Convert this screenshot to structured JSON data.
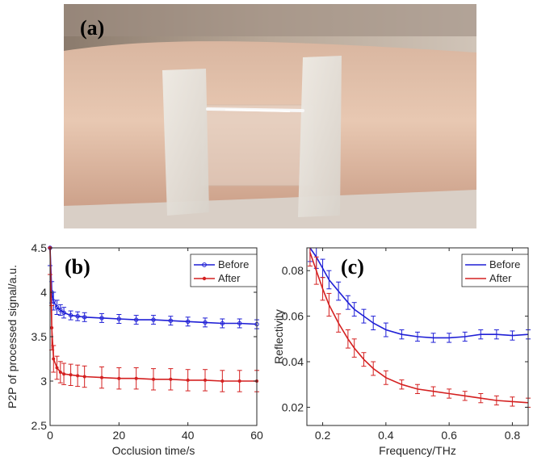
{
  "photo": {
    "label": "(a)",
    "description_icon": "forearm-with-tape-photo"
  },
  "colors": {
    "before": "#1f1fd6",
    "after": "#d42020",
    "axis": "#262626"
  },
  "chart_data": [
    {
      "type": "line",
      "panel_label": "(b)",
      "xlabel": "Occlusion time/s",
      "ylabel": "P2P of processed signal/a.u.",
      "xlim": [
        0,
        60
      ],
      "ylim": [
        2.5,
        4.5
      ],
      "xticks": [
        "0",
        "20",
        "40",
        "60"
      ],
      "yticks": [
        "2.5",
        "3",
        "3.5",
        "4",
        "4.5"
      ],
      "legend_position": "top-right",
      "series": [
        {
          "name": "Before",
          "marker": "circle",
          "x": [
            0,
            0.5,
            1,
            2,
            3,
            4,
            6,
            8,
            10,
            15,
            20,
            25,
            30,
            35,
            40,
            45,
            50,
            55,
            60
          ],
          "y": [
            4.5,
            4.0,
            3.9,
            3.83,
            3.8,
            3.77,
            3.74,
            3.73,
            3.72,
            3.71,
            3.7,
            3.69,
            3.69,
            3.68,
            3.67,
            3.66,
            3.65,
            3.65,
            3.64
          ],
          "err": [
            0.2,
            0.12,
            0.1,
            0.08,
            0.06,
            0.06,
            0.05,
            0.05,
            0.05,
            0.05,
            0.05,
            0.05,
            0.05,
            0.05,
            0.05,
            0.05,
            0.05,
            0.05,
            0.05
          ]
        },
        {
          "name": "After",
          "marker": "asterisk",
          "x": [
            0,
            0.5,
            1,
            2,
            3,
            4,
            6,
            8,
            10,
            15,
            20,
            25,
            30,
            35,
            40,
            45,
            50,
            55,
            60
          ],
          "y": [
            4.5,
            3.6,
            3.25,
            3.15,
            3.1,
            3.08,
            3.07,
            3.06,
            3.05,
            3.04,
            3.03,
            3.03,
            3.02,
            3.02,
            3.01,
            3.01,
            3.0,
            3.0,
            3.0
          ],
          "err": [
            0.3,
            0.25,
            0.15,
            0.13,
            0.12,
            0.12,
            0.12,
            0.12,
            0.12,
            0.12,
            0.12,
            0.12,
            0.12,
            0.12,
            0.12,
            0.12,
            0.12,
            0.12,
            0.12
          ]
        }
      ]
    },
    {
      "type": "line",
      "panel_label": "(c)",
      "xlabel": "Frequency/THz",
      "ylabel": "Reflectivity",
      "xlim": [
        0.15,
        0.85
      ],
      "ylim": [
        0.012,
        0.09
      ],
      "xticks": [
        "0.2",
        "0.4",
        "0.6",
        "0.8"
      ],
      "xtick_values": [
        0.2,
        0.4,
        0.6,
        0.8
      ],
      "yticks": [
        "0.02",
        "0.04",
        "0.06",
        "0.08"
      ],
      "ytick_values": [
        0.02,
        0.04,
        0.06,
        0.08
      ],
      "legend_position": "top-right",
      "series": [
        {
          "name": "Before",
          "x": [
            0.16,
            0.18,
            0.2,
            0.22,
            0.25,
            0.28,
            0.3,
            0.33,
            0.36,
            0.4,
            0.45,
            0.5,
            0.55,
            0.6,
            0.65,
            0.7,
            0.75,
            0.8,
            0.85
          ],
          "y": [
            0.09,
            0.086,
            0.081,
            0.076,
            0.071,
            0.066,
            0.063,
            0.06,
            0.057,
            0.054,
            0.052,
            0.051,
            0.0505,
            0.0505,
            0.051,
            0.052,
            0.052,
            0.0515,
            0.052
          ],
          "err": [
            0.006,
            0.005,
            0.004,
            0.004,
            0.004,
            0.003,
            0.003,
            0.003,
            0.003,
            0.003,
            0.002,
            0.002,
            0.002,
            0.002,
            0.002,
            0.002,
            0.002,
            0.002,
            0.002
          ]
        },
        {
          "name": "After",
          "x": [
            0.16,
            0.18,
            0.2,
            0.22,
            0.25,
            0.28,
            0.3,
            0.33,
            0.36,
            0.4,
            0.45,
            0.5,
            0.55,
            0.6,
            0.65,
            0.7,
            0.75,
            0.8,
            0.85
          ],
          "y": [
            0.088,
            0.08,
            0.072,
            0.065,
            0.057,
            0.05,
            0.046,
            0.041,
            0.037,
            0.033,
            0.03,
            0.028,
            0.027,
            0.026,
            0.025,
            0.024,
            0.023,
            0.0225,
            0.022
          ],
          "err": [
            0.006,
            0.006,
            0.005,
            0.005,
            0.004,
            0.004,
            0.004,
            0.003,
            0.003,
            0.003,
            0.002,
            0.002,
            0.002,
            0.002,
            0.002,
            0.002,
            0.002,
            0.002,
            0.002
          ]
        }
      ]
    }
  ]
}
